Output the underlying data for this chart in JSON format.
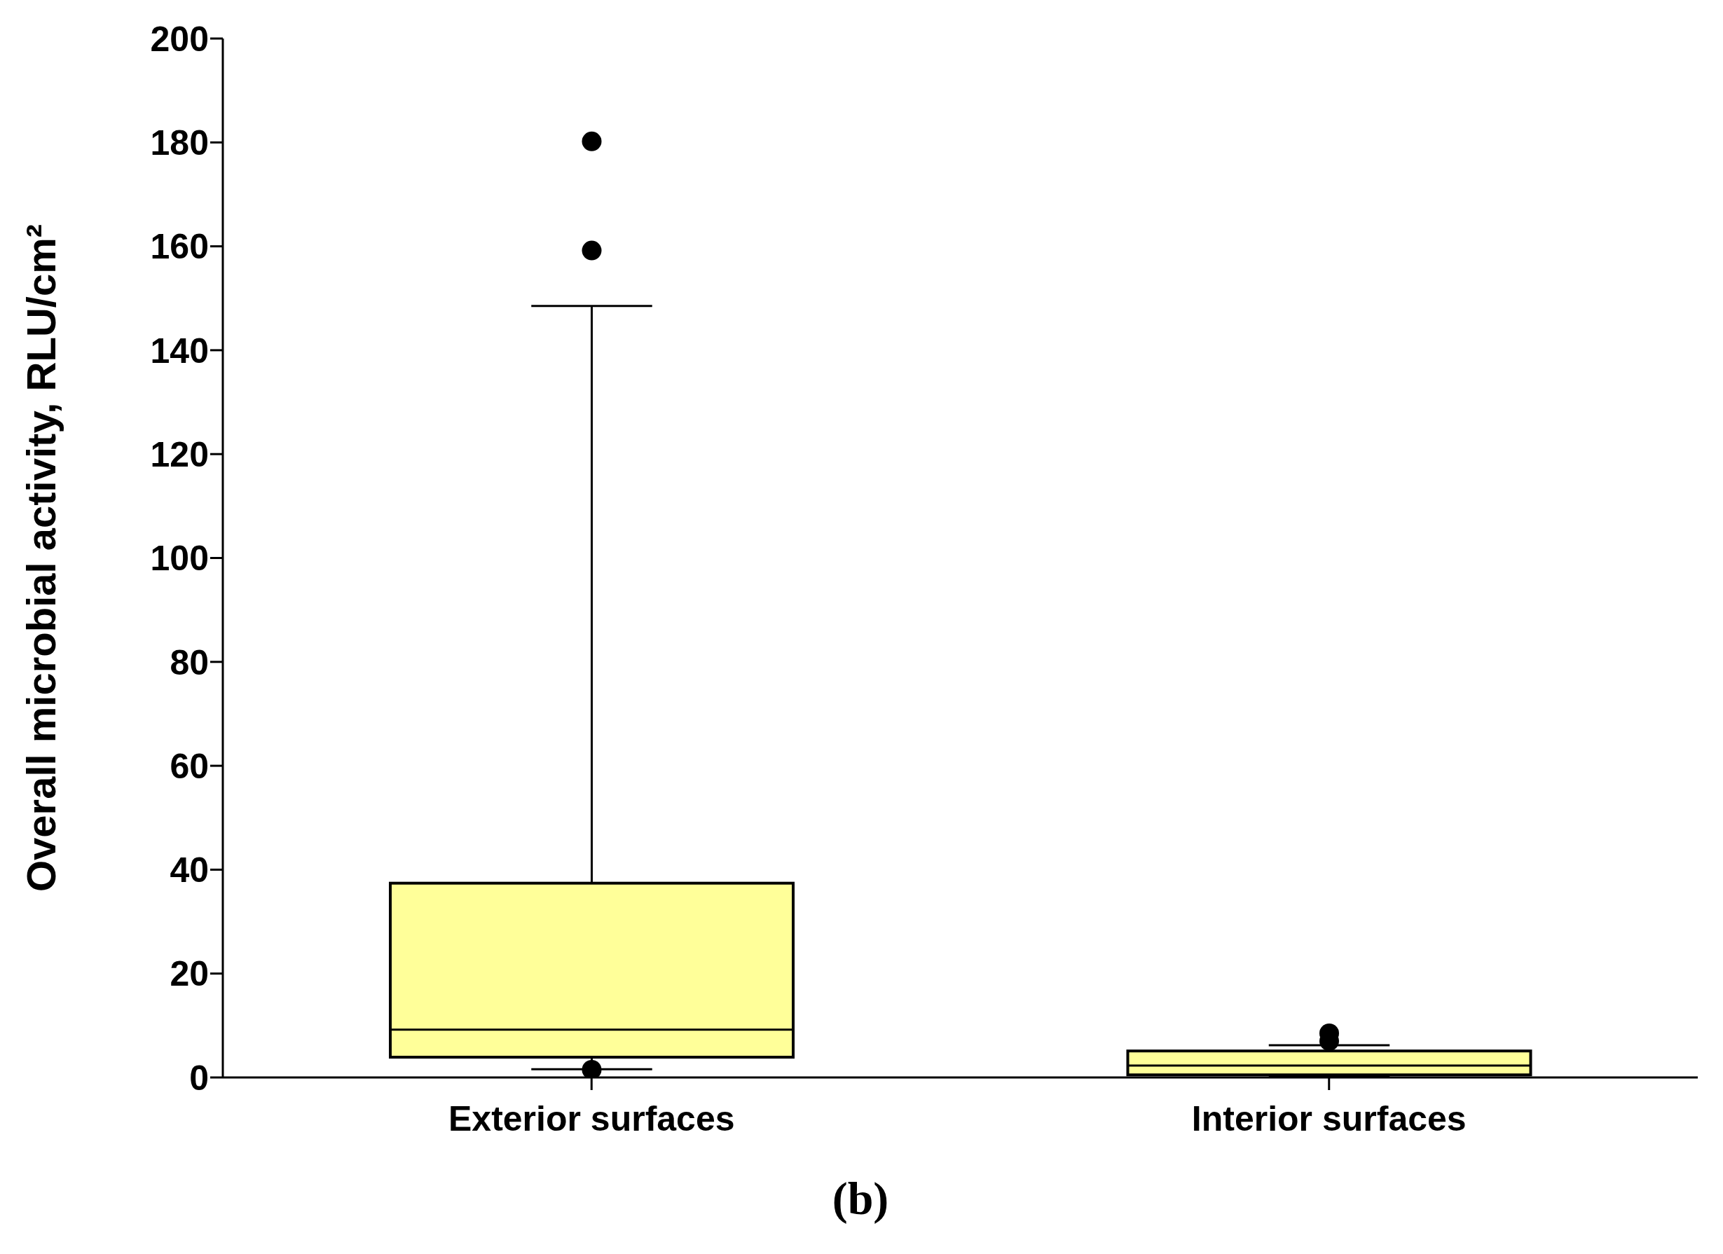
{
  "chart_data": {
    "type": "box",
    "ylabel": "Overall microbial activity, RLU/cm²",
    "categories": [
      "Exterior surfaces",
      "Interior surfaces"
    ],
    "boxes": [
      {
        "low": 1.6,
        "q1": 3.9,
        "median": 9.2,
        "q3": 37.4,
        "high": 148.5,
        "outliers": [
          180.2,
          159.2,
          1.5
        ]
      },
      {
        "low": 0.2,
        "q1": 0.5,
        "median": 2.3,
        "q3": 5.1,
        "high": 6.2,
        "outliers": [
          8.5,
          7.0
        ]
      }
    ],
    "color": "#ffff99",
    "ylim": [
      0,
      200
    ],
    "yticks": [
      0,
      20,
      40,
      60,
      80,
      100,
      120,
      140,
      160,
      180,
      200
    ],
    "annotations": [
      "(b)"
    ]
  }
}
